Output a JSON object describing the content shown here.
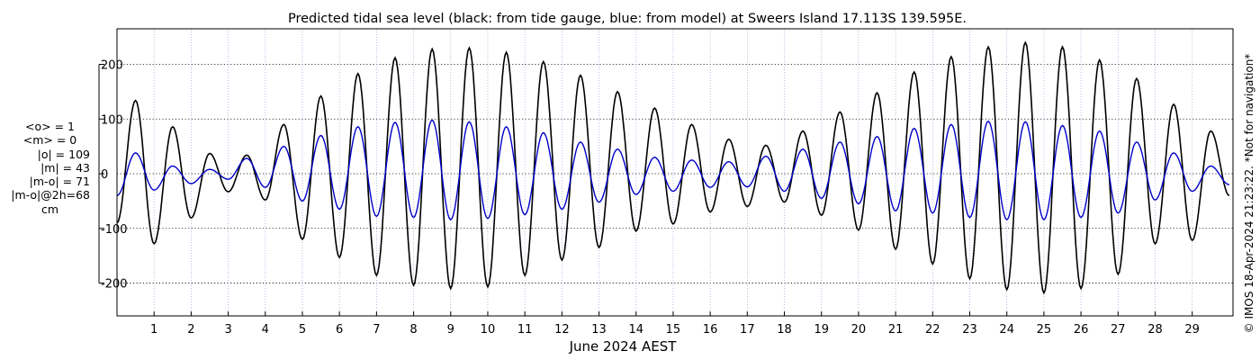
{
  "chart_data": {
    "type": "line",
    "title": "Predicted tidal sea level (black: from tide gauge, blue: from model) at Sweers Island 17.113S 139.595E.",
    "xlabel": "June 2024 AEST",
    "ylabel": "",
    "x_unit": "day of June 2024 (AEST)",
    "xlim": [
      0,
      30.1
    ],
    "ylim": [
      -260,
      265
    ],
    "x_ticks": [
      1,
      2,
      3,
      4,
      5,
      6,
      7,
      8,
      9,
      10,
      11,
      12,
      13,
      14,
      15,
      16,
      17,
      18,
      19,
      20,
      21,
      22,
      23,
      24,
      25,
      26,
      27,
      28,
      29
    ],
    "x_tick_labels": [
      "1",
      "2",
      "3",
      "4",
      "5",
      "6",
      "7",
      "8",
      "9",
      "10",
      "11",
      "12",
      "13",
      "14",
      "15",
      "16",
      "17",
      "18",
      "19",
      "20",
      "21",
      "22",
      "23",
      "24",
      "25",
      "26",
      "27",
      "28",
      "29"
    ],
    "y_ticks": [
      200,
      100,
      0,
      -100,
      -200
    ],
    "y_tick_labels": [
      "200",
      "100",
      "0",
      "-100",
      "-200"
    ],
    "grid": true,
    "series": [
      {
        "color": "#000000",
        "x": [
          0.0,
          0.5,
          1.0,
          1.5,
          2.0,
          2.5,
          3.0,
          3.5,
          4.0,
          4.5,
          5.0,
          5.5,
          6.0,
          6.5,
          7.0,
          7.5,
          8.0,
          8.5,
          9.0,
          9.5,
          10.0,
          10.5,
          11.0,
          11.5,
          12.0,
          12.5,
          13.0,
          13.5,
          14.0,
          14.5,
          15.0,
          15.5,
          16.0,
          16.5,
          17.0,
          17.5,
          18.0,
          18.5,
          19.0,
          19.5,
          20.0,
          20.5,
          21.0,
          21.5,
          22.0,
          22.5,
          23.0,
          23.5,
          24.0,
          24.5,
          25.0,
          25.5,
          26.0,
          26.5,
          27.0,
          27.5,
          28.0,
          28.5,
          29.0,
          29.5,
          30.0
        ],
        "values": [
          -90,
          134,
          -128,
          86,
          -81,
          37,
          -33,
          34,
          -48,
          90,
          -120,
          142,
          -153,
          183,
          -186,
          212,
          -204,
          228,
          -210,
          230,
          -207,
          222,
          -186,
          205,
          -158,
          180,
          -135,
          150,
          -105,
          120,
          -92,
          90,
          -70,
          63,
          -60,
          52,
          -52,
          78,
          -76,
          113,
          -103,
          148,
          -138,
          186,
          -165,
          214,
          -192,
          232,
          -212,
          240,
          -218,
          232,
          -210,
          208,
          -184,
          174,
          -128,
          127,
          -122,
          78,
          -40
        ]
      },
      {
        "color": "#0000c8",
        "x": [
          0.0,
          0.5,
          1.0,
          1.5,
          2.0,
          2.5,
          3.0,
          3.5,
          4.0,
          4.5,
          5.0,
          5.5,
          6.0,
          6.5,
          7.0,
          7.5,
          8.0,
          8.5,
          9.0,
          9.5,
          10.0,
          10.5,
          11.0,
          11.5,
          12.0,
          12.5,
          13.0,
          13.5,
          14.0,
          14.5,
          15.0,
          15.5,
          16.0,
          16.5,
          17.0,
          17.5,
          18.0,
          18.5,
          19.0,
          19.5,
          20.0,
          20.5,
          21.0,
          21.5,
          22.0,
          22.5,
          23.0,
          23.5,
          24.0,
          24.5,
          25.0,
          25.5,
          26.0,
          26.5,
          27.0,
          27.5,
          28.0,
          28.5,
          29.0,
          29.5,
          30.0
        ],
        "values": [
          -40,
          38,
          -30,
          14,
          -18,
          8,
          -10,
          28,
          -25,
          50,
          -50,
          70,
          -65,
          86,
          -78,
          94,
          -80,
          98,
          -84,
          95,
          -82,
          86,
          -75,
          75,
          -65,
          58,
          -52,
          45,
          -38,
          30,
          -32,
          25,
          -25,
          22,
          -24,
          32,
          -32,
          45,
          -45,
          58,
          -55,
          68,
          -68,
          83,
          -72,
          90,
          -80,
          96,
          -84,
          95,
          -84,
          88,
          -80,
          78,
          -72,
          58,
          -48,
          38,
          -32,
          14,
          -20
        ]
      }
    ],
    "stats_box": {
      "mean_o": "<o> = 1",
      "mean_m": "<m> = 0",
      "abs_o": "|o| = 109",
      "abs_m": "|m| = 43",
      "abs_m_o": "|m-o| = 71",
      "abs_m_o_2h": "|m-o|@2h=68",
      "unit": "cm"
    },
    "side_note": "© IMOS 18-Apr-2024 21:23:22. *Not for navigation*"
  }
}
